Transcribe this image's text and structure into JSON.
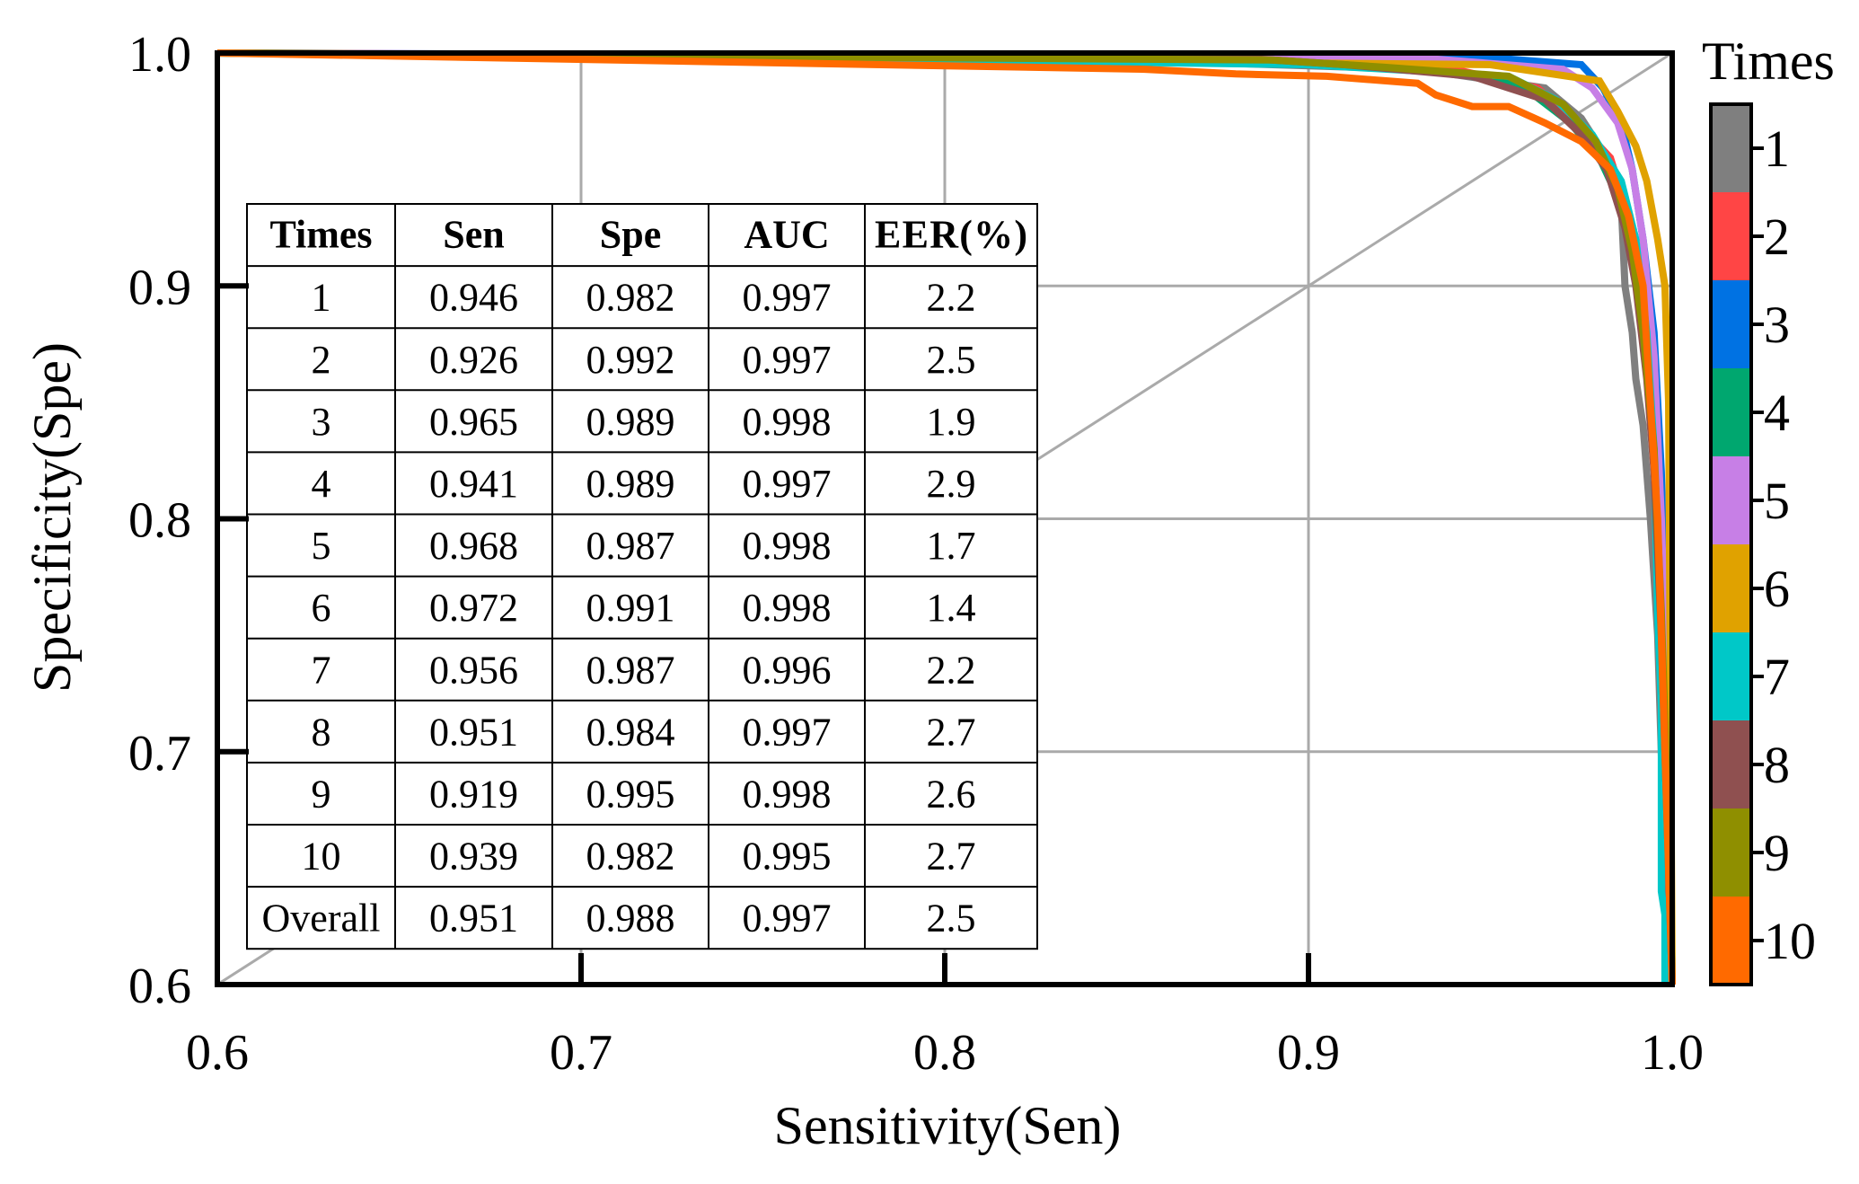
{
  "chart_data": {
    "type": "line",
    "title": "",
    "xlabel": "Sensitivity(Sen)",
    "ylabel": "Specificity(Spe)",
    "xlim": [
      0.6,
      1.0
    ],
    "ylim": [
      0.6,
      1.0
    ],
    "x_ticks": [
      "0.6",
      "0.7",
      "0.8",
      "0.9",
      "1.0"
    ],
    "y_ticks": [
      "0.6",
      "0.7",
      "0.8",
      "0.9",
      "1.0"
    ],
    "grid": true,
    "diagonal_reference": true,
    "legend": {
      "title": "Times",
      "placement": "right colorbar",
      "labels": [
        "1",
        "2",
        "3",
        "4",
        "5",
        "6",
        "7",
        "8",
        "9",
        "10"
      ]
    },
    "series": [
      {
        "name": "1",
        "color": "#7f7f7f",
        "x": [
          0.6,
          0.85,
          0.93,
          0.965,
          0.975,
          0.982,
          0.986,
          0.987,
          0.989,
          0.99,
          0.992,
          0.994,
          0.996,
          0.998,
          1.0
        ],
        "y": [
          1.0,
          0.997,
          0.993,
          0.985,
          0.972,
          0.955,
          0.935,
          0.9,
          0.88,
          0.86,
          0.84,
          0.8,
          0.75,
          0.65,
          0.6
        ]
      },
      {
        "name": "2",
        "color": "#ff4545",
        "x": [
          0.6,
          0.9,
          0.94,
          0.963,
          0.974,
          0.983,
          0.988,
          0.991,
          0.994,
          0.996,
          0.998,
          1.0
        ],
        "y": [
          1.0,
          0.997,
          0.993,
          0.985,
          0.97,
          0.955,
          0.93,
          0.9,
          0.85,
          0.8,
          0.7,
          0.6
        ]
      },
      {
        "name": "3",
        "color": "#0072e3",
        "x": [
          0.6,
          0.95,
          0.975,
          0.981,
          0.986,
          0.989,
          0.992,
          0.995,
          0.997,
          0.999,
          1.0
        ],
        "y": [
          1.0,
          0.998,
          0.995,
          0.985,
          0.97,
          0.95,
          0.92,
          0.88,
          0.82,
          0.7,
          0.6
        ]
      },
      {
        "name": "4",
        "color": "#00a76f",
        "x": [
          0.6,
          0.9,
          0.95,
          0.962,
          0.972,
          0.98,
          0.986,
          0.99,
          0.993,
          0.995,
          0.997,
          0.999,
          1.0
        ],
        "y": [
          1.0,
          0.997,
          0.99,
          0.982,
          0.97,
          0.955,
          0.935,
          0.91,
          0.88,
          0.84,
          0.78,
          0.68,
          0.6
        ]
      },
      {
        "name": "5",
        "color": "#c77fe6",
        "x": [
          0.6,
          0.93,
          0.97,
          0.978,
          0.985,
          0.989,
          0.992,
          0.995,
          0.997,
          0.999,
          1.0
        ],
        "y": [
          1.0,
          0.998,
          0.993,
          0.985,
          0.97,
          0.95,
          0.92,
          0.87,
          0.8,
          0.7,
          0.6
        ]
      },
      {
        "name": "6",
        "color": "#e0a200",
        "x": [
          0.6,
          0.95,
          0.98,
          0.985,
          0.99,
          0.993,
          0.996,
          0.998,
          0.999,
          1.0
        ],
        "y": [
          1.0,
          0.995,
          0.988,
          0.975,
          0.96,
          0.945,
          0.92,
          0.9,
          0.85,
          0.6
        ]
      },
      {
        "name": "7",
        "color": "#00c8c8",
        "x": [
          0.6,
          0.725,
          0.8,
          0.9,
          0.955,
          0.968,
          0.978,
          0.986,
          0.99,
          0.993,
          0.995,
          0.996,
          0.997,
          0.997,
          0.998,
          0.998
        ],
        "y": [
          1.0,
          0.997,
          0.997,
          0.995,
          0.99,
          0.98,
          0.965,
          0.945,
          0.92,
          0.88,
          0.83,
          0.76,
          0.72,
          0.64,
          0.63,
          0.6
        ]
      },
      {
        "name": "8",
        "color": "#8f5050",
        "x": [
          0.6,
          0.88,
          0.91,
          0.945,
          0.965,
          0.975,
          0.982,
          0.987,
          0.99,
          0.993,
          0.995,
          0.997,
          0.999,
          1.0
        ],
        "y": [
          1.0,
          0.998,
          0.995,
          0.99,
          0.98,
          0.965,
          0.95,
          0.925,
          0.9,
          0.86,
          0.82,
          0.75,
          0.65,
          0.6
        ]
      },
      {
        "name": "9",
        "color": "#8f8f00",
        "x": [
          0.6,
          0.89,
          0.92,
          0.955,
          0.97,
          0.979,
          0.985,
          0.989,
          0.992,
          0.995,
          0.997,
          0.999,
          1.0
        ],
        "y": [
          1.0,
          0.997,
          0.994,
          0.99,
          0.978,
          0.962,
          0.942,
          0.915,
          0.88,
          0.83,
          0.76,
          0.66,
          0.6
        ]
      },
      {
        "name": "10",
        "color": "#ff6a00",
        "x": [
          0.6,
          0.855,
          0.88,
          0.905,
          0.93,
          0.935,
          0.945,
          0.955,
          0.965,
          0.975,
          0.983,
          0.988,
          0.992,
          0.994,
          0.996,
          0.997,
          0.998,
          0.999,
          1.0
        ],
        "y": [
          1.0,
          0.993,
          0.991,
          0.99,
          0.987,
          0.982,
          0.977,
          0.977,
          0.97,
          0.962,
          0.95,
          0.93,
          0.9,
          0.85,
          0.8,
          0.75,
          0.7,
          0.65,
          0.6
        ]
      }
    ],
    "table": {
      "columns": [
        "Times",
        "Sen",
        "Spe",
        "AUC",
        "EER(%)"
      ],
      "rows": [
        [
          "1",
          "0.946",
          "0.982",
          "0.997",
          "2.2"
        ],
        [
          "2",
          "0.926",
          "0.992",
          "0.997",
          "2.5"
        ],
        [
          "3",
          "0.965",
          "0.989",
          "0.998",
          "1.9"
        ],
        [
          "4",
          "0.941",
          "0.989",
          "0.997",
          "2.9"
        ],
        [
          "5",
          "0.968",
          "0.987",
          "0.998",
          "1.7"
        ],
        [
          "6",
          "0.972",
          "0.991",
          "0.998",
          "1.4"
        ],
        [
          "7",
          "0.956",
          "0.987",
          "0.996",
          "2.2"
        ],
        [
          "8",
          "0.951",
          "0.984",
          "0.997",
          "2.7"
        ],
        [
          "9",
          "0.919",
          "0.995",
          "0.998",
          "2.6"
        ],
        [
          "10",
          "0.939",
          "0.982",
          "0.995",
          "2.7"
        ],
        [
          "Overall",
          "0.951",
          "0.988",
          "0.997",
          "2.5"
        ]
      ]
    }
  }
}
